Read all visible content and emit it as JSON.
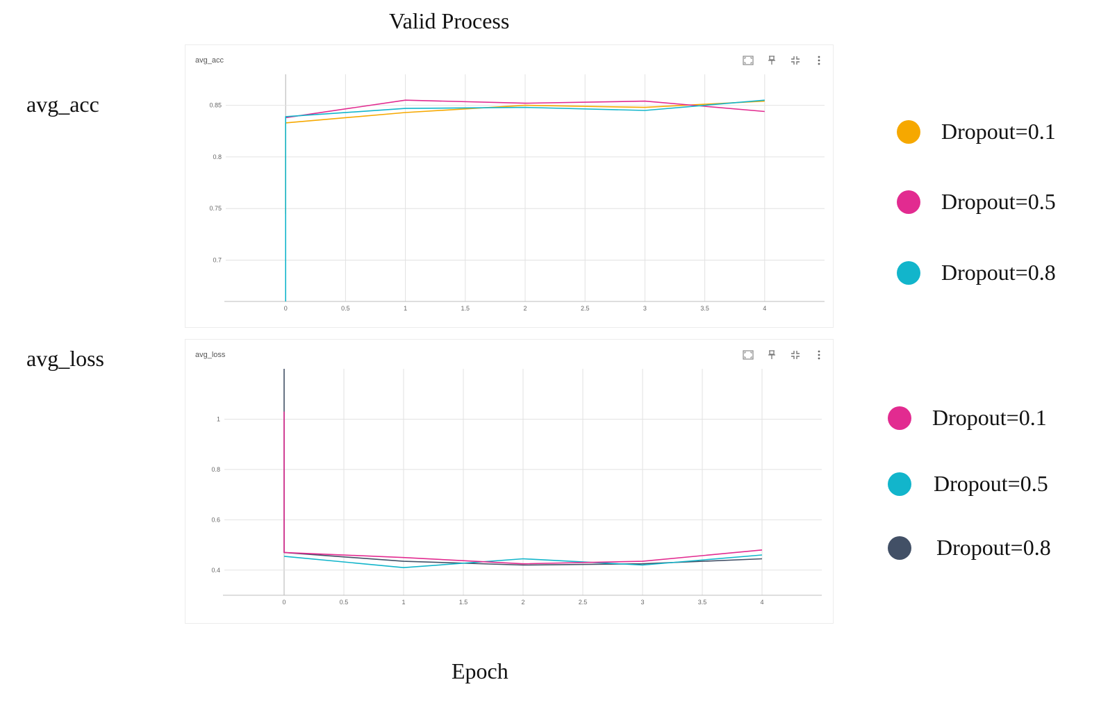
{
  "title": "Valid Process",
  "xlabel": "Epoch",
  "panels": [
    {
      "side_label": "avg_acc",
      "card_title": "avg_acc",
      "legend": [
        {
          "label": "Dropout=0.1",
          "color": "#f6a800"
        },
        {
          "label": "Dropout=0.5",
          "color": "#e22b90"
        },
        {
          "label": "Dropout=0.8",
          "color": "#12b5cb"
        }
      ]
    },
    {
      "side_label": "avg_loss",
      "card_title": "avg_loss",
      "legend": [
        {
          "label": "Dropout=0.1",
          "color": "#e22b90"
        },
        {
          "label": "Dropout=0.5",
          "color": "#12b5cb"
        },
        {
          "label": "Dropout=0.8",
          "color": "#425066"
        }
      ]
    }
  ],
  "toolbar_icons": [
    "fullscreen-icon",
    "pin-icon",
    "fit-domain-icon",
    "more-vert-icon"
  ],
  "chart_data": [
    {
      "type": "line",
      "title": "avg_acc",
      "xlabel": "",
      "ylabel": "",
      "x_ticks": [
        "0",
        "0.5",
        "1",
        "1.5",
        "2",
        "2.5",
        "3",
        "3.5",
        "4"
      ],
      "y_ticks": [
        "0.7",
        "0.75",
        "0.8",
        "0.85"
      ],
      "xlim": [
        -0.5,
        4.5
      ],
      "ylim": [
        0.66,
        0.88
      ],
      "grid": true,
      "series": [
        {
          "color": "#f6a800",
          "x": [
            0,
            0,
            1,
            2,
            3,
            4
          ],
          "y": [
            0.745,
            0.833,
            0.843,
            0.85,
            0.848,
            0.854
          ]
        },
        {
          "color": "#e22b90",
          "x": [
            0,
            1,
            2,
            3,
            4
          ],
          "y": [
            0.838,
            0.855,
            0.852,
            0.854,
            0.844
          ]
        },
        {
          "color": "#12b5cb",
          "x": [
            0,
            0,
            1,
            2,
            3,
            4
          ],
          "y": [
            0.66,
            0.839,
            0.847,
            0.848,
            0.845,
            0.855
          ]
        }
      ]
    },
    {
      "type": "line",
      "title": "avg_loss",
      "xlabel": "",
      "ylabel": "",
      "x_ticks": [
        "0",
        "0.5",
        "1",
        "1.5",
        "2",
        "2.5",
        "3",
        "3.5",
        "4"
      ],
      "y_ticks": [
        "0.4",
        "0.6",
        "0.8",
        "1"
      ],
      "xlim": [
        -0.5,
        4.5
      ],
      "ylim": [
        0.3,
        1.2
      ],
      "grid": true,
      "series": [
        {
          "color": "#425066",
          "x": [
            0,
            0,
            1,
            2,
            3,
            4
          ],
          "y": [
            1.2,
            0.47,
            0.435,
            0.42,
            0.425,
            0.445
          ]
        },
        {
          "color": "#12b5cb",
          "x": [
            0,
            1,
            2,
            3,
            4
          ],
          "y": [
            0.455,
            0.41,
            0.445,
            0.42,
            0.46
          ]
        },
        {
          "color": "#e22b90",
          "x": [
            0,
            0,
            1,
            2,
            3,
            4
          ],
          "y": [
            1.03,
            0.47,
            0.45,
            0.425,
            0.435,
            0.48
          ]
        }
      ]
    }
  ]
}
